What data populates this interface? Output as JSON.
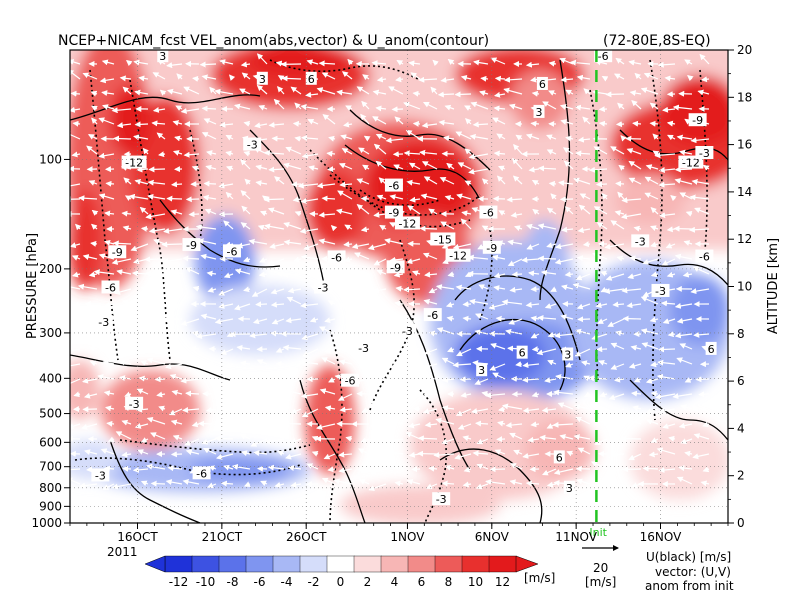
{
  "title": "NCEP+NICAM_fcst VEL_anom(abs,vector) & U_anom(contour)",
  "region": "(72-80E,8S-EQ)",
  "left_axis_label": "PRESSURE [hPa]",
  "right_axis_label": "ALTITUDE [km]",
  "year_label": "2011",
  "init_marker_label": "Init",
  "units_label": "[m/s]",
  "ref_vector_value": "20",
  "ref_vector_unit": "[m/s]",
  "legend_lines": [
    "U(black) [m/s]",
    "vector: (U,V)",
    "anom from init"
  ],
  "colors": {
    "strong_positive": "#e8191d",
    "strong_negative": "#2736d9",
    "init_line": "#22c422",
    "contour": "#000000",
    "vector": "#ffffff"
  },
  "chart_data": {
    "type": "heatmap",
    "x_ticks": [
      {
        "label": "16OCT",
        "day": 16
      },
      {
        "label": "21OCT",
        "day": 21
      },
      {
        "label": "26OCT",
        "day": 26
      },
      {
        "label": "1NOV",
        "day": 32
      },
      {
        "label": "6NOV",
        "day": 37
      },
      {
        "label": "11NOV",
        "day": 42
      },
      {
        "label": "16NOV",
        "day": 47
      }
    ],
    "x_range_days": [
      12,
      51
    ],
    "init_day": 43.2,
    "y_pressure_ticks": [
      100,
      200,
      300,
      400,
      500,
      600,
      700,
      800,
      900,
      1000
    ],
    "y_scale": "log",
    "y_range_hpa": [
      1000,
      50
    ],
    "altitude_ticks": [
      0,
      2,
      4,
      6,
      8,
      10,
      12,
      14,
      16,
      18,
      20
    ],
    "colorbar_ticks": [
      -12,
      -10,
      -8,
      -6,
      -4,
      -2,
      0,
      2,
      4,
      6,
      8,
      10,
      12
    ],
    "colorbar_colors": [
      "#1f32d9",
      "#3d52e2",
      "#5b72ea",
      "#7f95f0",
      "#a8b8f5",
      "#d5ddfa",
      "#ffffff",
      "#fbdcdc",
      "#f7b6b5",
      "#f28b89",
      "#ed5b59",
      "#e8302e",
      "#e31a1c"
    ],
    "contour_labels": [
      {
        "text": "-12",
        "day": 15.8,
        "hpa": 102
      },
      {
        "text": "-9",
        "day": 19.2,
        "hpa": 172
      },
      {
        "text": "-6",
        "day": 21.6,
        "hpa": 179
      },
      {
        "text": "-9",
        "day": 14.8,
        "hpa": 180
      },
      {
        "text": "-3",
        "day": 14.0,
        "hpa": 280
      },
      {
        "text": "-3",
        "day": 15.8,
        "hpa": 470
      },
      {
        "text": "-6",
        "day": 14.4,
        "hpa": 225
      },
      {
        "text": "3",
        "day": 17.5,
        "hpa": 52
      },
      {
        "text": "6",
        "day": 26.3,
        "hpa": 60
      },
      {
        "text": "3",
        "day": 23.4,
        "hpa": 60
      },
      {
        "text": "-3",
        "day": 22.8,
        "hpa": 91
      },
      {
        "text": "-6",
        "day": 27.8,
        "hpa": 186
      },
      {
        "text": "-3",
        "day": 27.0,
        "hpa": 225
      },
      {
        "text": "-6",
        "day": 28.6,
        "hpa": 406
      },
      {
        "text": "-3",
        "day": 29.4,
        "hpa": 330
      },
      {
        "text": "-6",
        "day": 31.2,
        "hpa": 118
      },
      {
        "text": "-9",
        "day": 31.2,
        "hpa": 140
      },
      {
        "text": "-12",
        "day": 32.0,
        "hpa": 150
      },
      {
        "text": "-15",
        "day": 34.1,
        "hpa": 166
      },
      {
        "text": "-12",
        "day": 35.0,
        "hpa": 184
      },
      {
        "text": "-9",
        "day": 37.0,
        "hpa": 175
      },
      {
        "text": "-6",
        "day": 36.8,
        "hpa": 140
      },
      {
        "text": "-9",
        "day": 31.3,
        "hpa": 198
      },
      {
        "text": "-6",
        "day": 33.5,
        "hpa": 268
      },
      {
        "text": "-3",
        "day": 32.0,
        "hpa": 296
      },
      {
        "text": "3",
        "day": 39.8,
        "hpa": 74
      },
      {
        "text": "6",
        "day": 40.0,
        "hpa": 62
      },
      {
        "text": "6",
        "day": 38.8,
        "hpa": 340
      },
      {
        "text": "3",
        "day": 41.5,
        "hpa": 344
      },
      {
        "text": "3",
        "day": 36.4,
        "hpa": 380
      },
      {
        "text": "6",
        "day": 41.0,
        "hpa": 660
      },
      {
        "text": "3",
        "day": 41.6,
        "hpa": 800
      },
      {
        "text": "-3",
        "day": 34.0,
        "hpa": 860
      },
      {
        "text": "-3",
        "day": 13.8,
        "hpa": 740
      },
      {
        "text": "-6",
        "day": 19.8,
        "hpa": 730
      },
      {
        "text": "-3",
        "day": 45.8,
        "hpa": 168
      },
      {
        "text": "-9",
        "day": 49.2,
        "hpa": 78
      },
      {
        "text": "-12",
        "day": 48.8,
        "hpa": 102
      },
      {
        "text": "-3",
        "day": 49.6,
        "hpa": 96
      },
      {
        "text": "-6",
        "day": 49.6,
        "hpa": 185
      },
      {
        "text": "-3",
        "day": 47.0,
        "hpa": 230
      },
      {
        "text": "6",
        "day": 50.0,
        "hpa": 332
      },
      {
        "text": "-6",
        "day": 43.6,
        "hpa": 52
      }
    ]
  }
}
